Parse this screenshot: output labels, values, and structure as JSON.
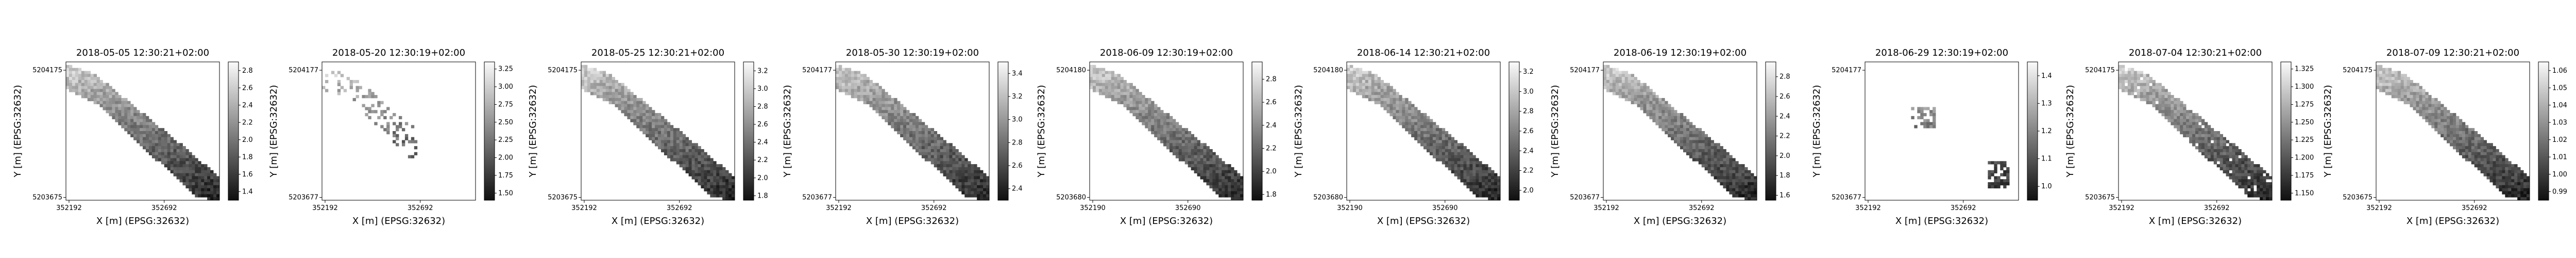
{
  "chart_data": [
    {
      "type": "heatmap",
      "title": "2018-05-05 12:30:21+02:00",
      "xlabel": "X [m] (EPSG:32632)",
      "ylabel": "Y [m] (EPSG:32632)",
      "x_ticks": [
        "352192",
        "352692"
      ],
      "y_ticks": [
        "5204175",
        "5203675"
      ],
      "colorbar_ticks": [
        "2.8",
        "2.6",
        "2.4",
        "2.2",
        "2.0",
        "1.8",
        "1.6",
        "1.4"
      ],
      "colorbar_range": [
        1.3,
        2.9
      ],
      "mask": "full_strip"
    },
    {
      "type": "heatmap",
      "title": "2018-05-20 12:30:19+02:00",
      "xlabel": "X [m] (EPSG:32632)",
      "ylabel": "Y [m] (EPSG:32632)",
      "x_ticks": [
        "352192",
        "352692"
      ],
      "y_ticks": [
        "5204177",
        "5203677"
      ],
      "colorbar_ticks": [
        "3.25",
        "3.00",
        "2.75",
        "2.50",
        "2.25",
        "2.00",
        "1.75",
        "1.50"
      ],
      "colorbar_range": [
        1.4,
        3.35
      ],
      "mask": "sparse_patches"
    },
    {
      "type": "heatmap",
      "title": "2018-05-25 12:30:21+02:00",
      "xlabel": "X [m] (EPSG:32632)",
      "ylabel": "Y [m] (EPSG:32632)",
      "x_ticks": [
        "352192",
        "352692"
      ],
      "y_ticks": [
        "5204175",
        "5203675"
      ],
      "colorbar_ticks": [
        "3.2",
        "3.0",
        "2.8",
        "2.6",
        "2.4",
        "2.2",
        "2.0",
        "1.8"
      ],
      "colorbar_range": [
        1.75,
        3.3
      ],
      "mask": "full_strip"
    },
    {
      "type": "heatmap",
      "title": "2018-05-30 12:30:19+02:00",
      "xlabel": "X [m] (EPSG:32632)",
      "ylabel": "Y [m] (EPSG:32632)",
      "x_ticks": [
        "352192",
        "352692"
      ],
      "y_ticks": [
        "5204177",
        "5203677"
      ],
      "colorbar_ticks": [
        "3.4",
        "3.2",
        "3.0",
        "2.8",
        "2.6",
        "2.4"
      ],
      "colorbar_range": [
        2.3,
        3.5
      ],
      "mask": "full_strip"
    },
    {
      "type": "heatmap",
      "title": "2018-06-09 12:30:19+02:00",
      "xlabel": "X [m] (EPSG:32632)",
      "ylabel": "Y [m] (EPSG:32632)",
      "x_ticks": [
        "352190",
        "352690"
      ],
      "y_ticks": [
        "5204180",
        "5203680"
      ],
      "colorbar_ticks": [
        "2.8",
        "2.6",
        "2.4",
        "2.2",
        "2.0",
        "1.8"
      ],
      "colorbar_range": [
        1.75,
        2.95
      ],
      "mask": "full_strip"
    },
    {
      "type": "heatmap",
      "title": "2018-06-14 12:30:21+02:00",
      "xlabel": "X [m] (EPSG:32632)",
      "ylabel": "Y [m] (EPSG:32632)",
      "x_ticks": [
        "352190",
        "352690"
      ],
      "y_ticks": [
        "5204180",
        "5203680"
      ],
      "colorbar_ticks": [
        "3.2",
        "3.0",
        "2.8",
        "2.6",
        "2.4",
        "2.2",
        "2.0"
      ],
      "colorbar_range": [
        1.9,
        3.3
      ],
      "mask": "full_strip"
    },
    {
      "type": "heatmap",
      "title": "2018-06-19 12:30:19+02:00",
      "xlabel": "X [m] (EPSG:32632)",
      "ylabel": "Y [m] (EPSG:32632)",
      "x_ticks": [
        "352192",
        "352692"
      ],
      "y_ticks": [
        "5204177",
        "5203677"
      ],
      "colorbar_ticks": [
        "2.8",
        "2.6",
        "2.4",
        "2.2",
        "2.0",
        "1.8",
        "1.6"
      ],
      "colorbar_range": [
        1.55,
        2.95
      ],
      "mask": "full_strip"
    },
    {
      "type": "heatmap",
      "title": "2018-06-29 12:30:19+02:00",
      "xlabel": "X [m] (EPSG:32632)",
      "ylabel": "Y [m] (EPSG:32632)",
      "x_ticks": [
        "352192",
        "352692"
      ],
      "y_ticks": [
        "5204177",
        "5203677"
      ],
      "colorbar_ticks": [
        "1.4",
        "1.3",
        "1.2",
        "1.1",
        "1.0"
      ],
      "colorbar_range": [
        0.95,
        1.45
      ],
      "mask": "two_fragments"
    },
    {
      "type": "heatmap",
      "title": "2018-07-04 12:30:21+02:00",
      "xlabel": "X [m] (EPSG:32632)",
      "ylabel": "Y [m] (EPSG:32632)",
      "x_ticks": [
        "352192",
        "352692"
      ],
      "y_ticks": [
        "5204175",
        "5203675"
      ],
      "colorbar_ticks": [
        "1.325",
        "1.300",
        "1.275",
        "1.250",
        "1.225",
        "1.200",
        "1.175",
        "1.150"
      ],
      "colorbar_range": [
        1.14,
        1.335
      ],
      "mask": "full_strip_with_holes"
    },
    {
      "type": "heatmap",
      "title": "2018-07-09 12:30:21+02:00",
      "xlabel": "X [m] (EPSG:32632)",
      "ylabel": "Y [m] (EPSG:32632)",
      "x_ticks": [
        "352192",
        "352692"
      ],
      "y_ticks": [
        "5204175",
        "5203675"
      ],
      "colorbar_ticks": [
        "1.06",
        "1.05",
        "1.04",
        "1.03",
        "1.02",
        "1.01",
        "1.00",
        "0.99"
      ],
      "colorbar_range": [
        0.985,
        1.065
      ],
      "mask": "full_strip"
    }
  ]
}
